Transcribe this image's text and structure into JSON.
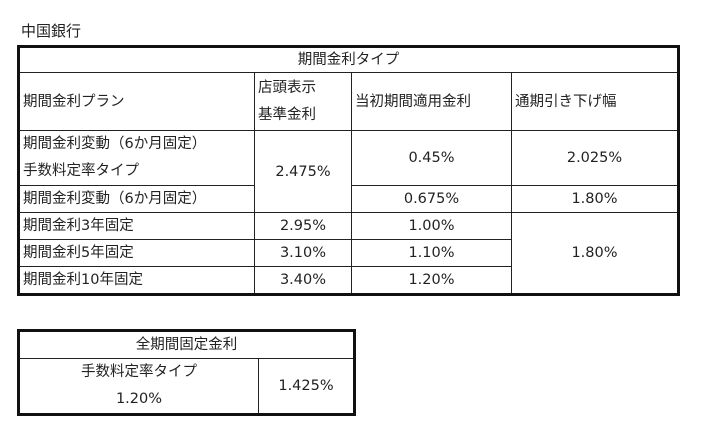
{
  "bank_name": "中国銀行",
  "rate_table": {
    "title": "期間金利タイプ",
    "headers": {
      "plan": "期間金利プラン",
      "base_line1": "店頭表示",
      "base_line2": "基準金利",
      "initial": "当初期間適用金利",
      "discount": "通期引き下げ幅"
    },
    "rows": [
      {
        "plan_line1": "期間金利変動（6か月固定）",
        "plan_line2": "手数料定率タイプ",
        "initial": "0.45%",
        "discount": "2.025%"
      },
      {
        "plan": "期間金利変動（6か月固定）",
        "initial": "0.675%",
        "discount": "1.80%"
      },
      {
        "plan": "期間金利3年固定",
        "base": "2.95%",
        "initial": "1.00%"
      },
      {
        "plan": "期間金利5年固定",
        "base": "3.10%",
        "initial": "1.10%"
      },
      {
        "plan": "期間金利10年固定",
        "base": "3.40%",
        "initial": "1.20%"
      }
    ],
    "variable_base": "2.475%",
    "fixed_discount": "1.80%"
  },
  "fixed_table": {
    "title": "全期間固定金利",
    "left_line1": "手数料定率タイプ",
    "left_line2": "1.20%",
    "right": "1.425%"
  }
}
